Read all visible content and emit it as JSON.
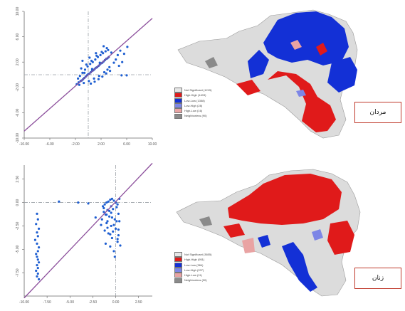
{
  "colors": {
    "points": "#1f5fd1",
    "regression": "#8c4f9c",
    "guides": "#9aa0a6",
    "axis": "#666666",
    "not_significant": "#e6e6e6",
    "high_high": "#e01a1a",
    "low_low": "#1330d6",
    "low_high": "#7d86e6",
    "high_low": "#e9a3a3",
    "neighborless": "#8a8a8a"
  },
  "chart_data": [
    {
      "type": "scatter",
      "title": "",
      "xlabel": "",
      "ylabel": "",
      "xlim": [
        -10,
        10
      ],
      "ylim": [
        -10,
        10
      ],
      "x_ticks": [
        -10,
        -6,
        -2,
        2,
        6,
        10
      ],
      "x_tick_labels": [
        "-10.00",
        "-6.00",
        "-2.00",
        "2.00",
        "6.00",
        "10.00"
      ],
      "y_ticks": [
        -10,
        -6,
        -2,
        2,
        6,
        10
      ],
      "y_tick_labels": [
        "-10.00",
        "-6.00",
        "-2.00",
        "2.00",
        "6.00",
        "10.00"
      ],
      "vline_x": 0,
      "hline_y": 0,
      "regression_line": {
        "x": [
          -10,
          10
        ],
        "y": [
          -8.9,
          8.9
        ]
      },
      "series": [
        {
          "x": [
            -1.8,
            -1.5,
            -1.2,
            -1.0,
            -0.8,
            -0.6,
            -0.4,
            -0.2,
            0.0,
            0.2,
            0.4,
            0.6,
            0.8,
            1.0,
            1.2,
            1.4,
            1.6,
            1.8,
            2.0,
            2.2,
            2.4,
            2.6,
            2.8,
            3.0,
            3.2,
            -1.6,
            -1.3,
            -0.9,
            -0.5,
            -0.1,
            0.3,
            0.7,
            1.1,
            1.5,
            1.9,
            2.3,
            2.7,
            3.1,
            -1.4,
            -0.7,
            0.1,
            0.9,
            1.7,
            2.5,
            3.3,
            -1.1,
            -0.3,
            0.5,
            1.3,
            2.1,
            2.9,
            3.6,
            0.4,
            1.0,
            1.6,
            2.2,
            2.8,
            3.4,
            4.0,
            -0.9,
            0.2,
            1.2,
            2.4,
            4.3,
            4.6,
            5.0,
            5.6,
            6.1,
            -0.6,
            0.6,
            1.8,
            3.0,
            4.8,
            5.3
          ],
          "y": [
            -1.5,
            -1.2,
            -1.0,
            -0.9,
            -0.7,
            -0.5,
            -0.3,
            -0.1,
            0.1,
            0.2,
            0.4,
            0.6,
            0.7,
            0.9,
            1.1,
            1.2,
            1.4,
            1.6,
            1.8,
            1.9,
            2.1,
            2.3,
            2.5,
            2.6,
            2.8,
            -0.6,
            -0.2,
            0.3,
            0.8,
            1.3,
            1.7,
            2.0,
            2.4,
            2.8,
            3.1,
            3.4,
            3.7,
            3.9,
            -1.6,
            -1.3,
            -1.0,
            -0.6,
            -0.2,
            0.4,
            1.2,
            1.0,
            1.6,
            2.2,
            3.0,
            3.6,
            4.2,
            3.5,
            -1.4,
            -1.1,
            -0.7,
            -0.3,
            0.2,
            0.6,
            1.9,
            2.2,
            2.7,
            3.4,
            4.5,
            2.4,
            3.1,
            3.8,
            3.3,
            4.4,
            0.3,
            0.9,
            1.9,
            0.8,
            1.4,
            2.0
          ]
        },
        {
          "x": [
            5.2,
            6.0
          ],
          "y": [
            -0.1,
            -0.1
          ]
        }
      ]
    },
    {
      "type": "scatter",
      "title": "",
      "xlabel": "",
      "ylabel": "",
      "xlim": [
        -10,
        4
      ],
      "ylim": [
        -10,
        4
      ],
      "x_ticks": [
        -10,
        -7.5,
        -5,
        -2.5,
        0,
        2.5
      ],
      "x_tick_labels": [
        "-10.00",
        "-7.50",
        "-5.00",
        "-2.50",
        "0.00",
        "2.50"
      ],
      "y_ticks": [
        -7.5,
        -5,
        -2.5,
        0,
        2.5
      ],
      "y_tick_labels": [
        "-7.50",
        "-5.00",
        "-2.50",
        "0.00",
        "2.50"
      ],
      "vline_x": 0,
      "hline_y": 0,
      "regression_line": {
        "x": [
          -10,
          4
        ],
        "y": [
          -10.2,
          4.2
        ]
      },
      "series": [
        {
          "x": [
            -1.4,
            -1.2,
            -1.0,
            -0.8,
            -0.6,
            -0.4,
            -0.2,
            0.0,
            0.2,
            0.4,
            -1.3,
            -1.1,
            -0.9,
            -0.7,
            -0.5,
            -0.3,
            -0.1,
            0.1,
            0.3,
            -1.5,
            -1.0,
            -0.5,
            0.0,
            0.4,
            -1.2,
            -0.8,
            -0.4,
            0.2,
            -1.6,
            -0.9,
            -0.3,
            0.3,
            -1.1,
            -0.6,
            -0.2,
            -1.3,
            -0.7,
            0.1,
            -0.4,
            -0.9,
            -0.2,
            0.3,
            -0.6,
            0.2,
            0.5,
            -0.1,
            -1.0,
            -0.5
          ],
          "y": [
            -0.4,
            -0.2,
            0.0,
            0.1,
            0.3,
            0.4,
            0.2,
            0.0,
            -0.2,
            0.4,
            -1.0,
            -1.3,
            -0.8,
            -1.5,
            -1.1,
            -0.7,
            -1.8,
            -2.0,
            -1.2,
            -1.8,
            -2.2,
            -2.5,
            -2.8,
            -2.0,
            -3.0,
            -3.3,
            -3.8,
            -4.2,
            -2.4,
            -2.7,
            -3.1,
            -3.5,
            -4.4,
            -4.7,
            -5.2,
            -0.6,
            -0.9,
            -0.5,
            -1.6,
            -2.0,
            -2.4,
            -2.9,
            -3.4,
            -3.9,
            -4.6,
            -5.8,
            -1.3,
            -0.4
          ]
        },
        {
          "x": [
            -8.6,
            -8.5,
            -8.7,
            -8.4,
            -8.6,
            -8.5,
            -8.8,
            -8.6,
            -8.4,
            -8.5,
            -8.7,
            -8.6,
            -8.5,
            -8.4,
            -8.6,
            -8.5,
            -8.7,
            -8.5,
            -8.6,
            -8.4
          ],
          "y": [
            -1.2,
            -1.8,
            -2.3,
            -2.8,
            -3.2,
            -3.6,
            -4.0,
            -4.4,
            -4.8,
            -5.2,
            -5.5,
            -5.8,
            -6.1,
            -6.4,
            -6.7,
            -7.0,
            -7.3,
            -7.6,
            -7.9,
            -8.2
          ]
        },
        {
          "x": [
            -6.2,
            -4.1,
            -3.0,
            -2.2
          ],
          "y": [
            0.1,
            0.0,
            -0.1,
            -1.6
          ]
        }
      ]
    }
  ],
  "maps": [
    {
      "legend": [
        {
          "label": "Not Significant (1215)",
          "color_key": "not_significant"
        },
        {
          "label": "High-High (1403)",
          "color_key": "high_high"
        },
        {
          "label": "Low-Low (1358)",
          "color_key": "low_low"
        },
        {
          "label": "Low-High (28)",
          "color_key": "low_high"
        },
        {
          "label": "High-Low (16)",
          "color_key": "high_low"
        },
        {
          "label": "Neighborless (90)",
          "color_key": "neighborless"
        }
      ],
      "tag": "مردان"
    },
    {
      "legend": [
        {
          "label": "Not Significant (3655)",
          "color_key": "not_significant"
        },
        {
          "label": "High-High (951)",
          "color_key": "high_high"
        },
        {
          "label": "Low-Low (384)",
          "color_key": "low_low"
        },
        {
          "label": "Low-High (207)",
          "color_key": "low_high"
        },
        {
          "label": "High-Low (11)",
          "color_key": "high_low"
        },
        {
          "label": "Neighborless (90)",
          "color_key": "neighborless"
        }
      ],
      "tag": "زنان"
    }
  ]
}
